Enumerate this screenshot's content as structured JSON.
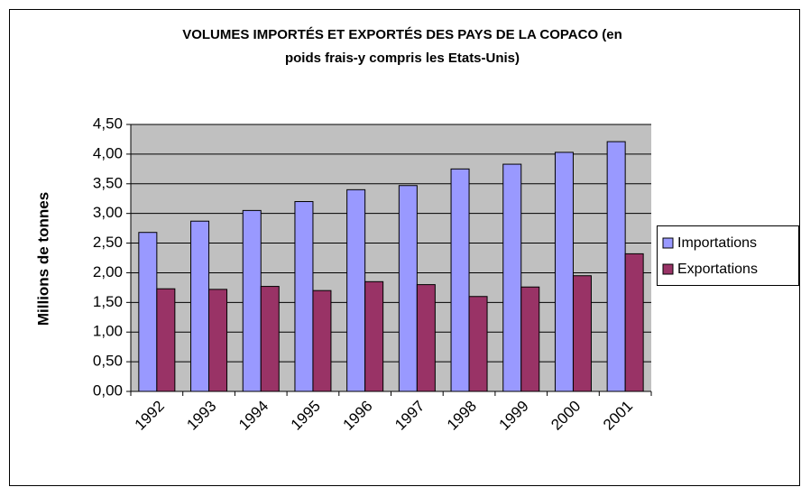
{
  "chart_data": {
    "type": "bar",
    "title": [
      "VOLUMES IMPORTÉS ET EXPORTÉS DES PAYS DE LA COPACO (en",
      "poids frais-y compris les Etats-Unis)"
    ],
    "y_label": "Millions de tonnes",
    "categories": [
      "1992",
      "1993",
      "1994",
      "1995",
      "1996",
      "1997",
      "1998",
      "1999",
      "2000",
      "2001"
    ],
    "series": [
      {
        "name": "Importations",
        "color": "#9999ff",
        "values": [
          2.68,
          2.87,
          3.05,
          3.2,
          3.4,
          3.47,
          3.75,
          3.83,
          4.03,
          4.21
        ]
      },
      {
        "name": "Exportations",
        "color": "#993366",
        "values": [
          1.73,
          1.72,
          1.77,
          1.7,
          1.85,
          1.8,
          1.6,
          1.76,
          1.95,
          2.32
        ]
      }
    ],
    "ylim": [
      0,
      4.5
    ],
    "yticks": [
      {
        "value": 0,
        "label": "0,00"
      },
      {
        "value": 0.5,
        "label": "0,50"
      },
      {
        "value": 1,
        "label": "1,00"
      },
      {
        "value": 1.5,
        "label": "1,50"
      },
      {
        "value": 2,
        "label": "2,00"
      },
      {
        "value": 2.5,
        "label": "2,50"
      },
      {
        "value": 3,
        "label": "3,00"
      },
      {
        "value": 3.5,
        "label": "3,50"
      },
      {
        "value": 4,
        "label": "4,00"
      },
      {
        "value": 4.5,
        "label": "4,50"
      }
    ],
    "grid": true,
    "plot_background": "#c0c0c0",
    "legend": "right"
  }
}
